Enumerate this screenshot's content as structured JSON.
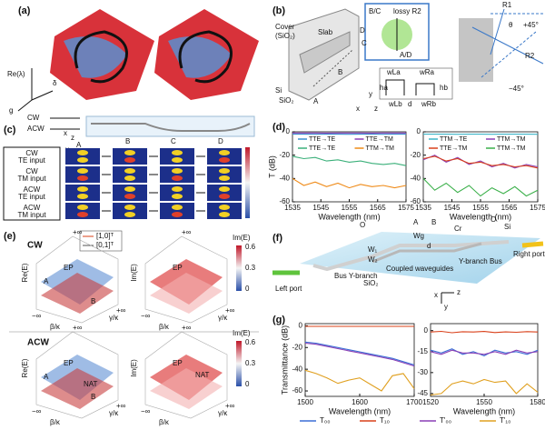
{
  "panels": [
    "(a)",
    "(b)",
    "(c)",
    "(d)",
    "(e)",
    "(f)",
    "(g)"
  ],
  "a": {
    "labels": [
      "Re(λ)",
      "δ",
      "g"
    ]
  },
  "b": {
    "labels": [
      "Cover",
      "(SiO₂)",
      "Slab",
      "Si",
      "SiO₂",
      "A",
      "B",
      "C",
      "D",
      "B/C",
      "lossy R2",
      "A/D",
      "R1",
      "R2",
      "θ",
      "+45°",
      "−45°",
      "wLa",
      "wRa",
      "ha",
      "hb",
      "wLb",
      "d",
      "wRb",
      "x",
      "y",
      "z"
    ]
  },
  "c": {
    "labels": [
      "CW",
      "ACW",
      "z",
      "x",
      "A",
      "B",
      "C",
      "D",
      "y"
    ],
    "rows": [
      [
        "CW",
        "TE input"
      ],
      [
        "CW",
        "TM input"
      ],
      [
        "ACW",
        "TE input"
      ],
      [
        "ACW",
        "TM input"
      ]
    ]
  },
  "e": {
    "labels": [
      "CW",
      "ACW",
      "[1,0]ᵀ",
      "[0,1]ᵀ",
      "Re(E)",
      "Im(E)",
      "β/κ",
      "γ/κ",
      "+∞",
      "−∞",
      "EP",
      "NAT",
      "A",
      "B",
      "0.6",
      "0.3",
      "0"
    ]
  },
  "f": {
    "labels": [
      "Left port",
      "Right port",
      "Bus Y-branch",
      "Coupled waveguides",
      "Y-branch Bus",
      "SiO₂",
      "Si",
      "Cr",
      "O",
      "A",
      "B",
      "W₁",
      "W₂",
      "Wg",
      "d",
      "x",
      "y",
      "z"
    ]
  },
  "chart_data": [
    {
      "type": "line",
      "xlabel": "Wavelength (nm)",
      "ylabel": "T (dB)",
      "legend": "top",
      "x": [
        1535,
        1539,
        1543,
        1547,
        1551,
        1555,
        1559,
        1563,
        1567,
        1571,
        1575
      ],
      "xlim": [
        1535,
        1575
      ],
      "xticks": [
        1535,
        1545,
        1555,
        1565,
        1575
      ],
      "ylim": [
        -60,
        0
      ],
      "yticks": [
        0,
        -20,
        -40,
        -60
      ],
      "series": [
        {
          "name": "TTE→TE",
          "color": "#3a8fd0",
          "values": [
            -2,
            -2,
            -2.1,
            -2,
            -2,
            -2.1,
            -2,
            -2,
            -2.1,
            -2,
            -2
          ]
        },
        {
          "name": "TTE→TM",
          "color": "#8a3fb5",
          "values": [
            -1,
            -1,
            -1,
            -1.1,
            -1,
            -1,
            -1,
            -1.1,
            -1,
            -1,
            -1
          ]
        },
        {
          "name": "TTE→TE",
          "color": "#3bb07a",
          "values": [
            -21,
            -23,
            -22,
            -25,
            -24,
            -26,
            -25,
            -27,
            -28,
            -27,
            -29
          ]
        },
        {
          "name": "TTM→TM",
          "color": "#ef8a17",
          "values": [
            -40,
            -46,
            -43,
            -47,
            -44,
            -48,
            -45,
            -47,
            -46,
            -48,
            -46
          ]
        }
      ]
    },
    {
      "type": "line",
      "xlabel": "Wavelength (nm)",
      "legend": "top",
      "x": [
        1535,
        1539,
        1543,
        1547,
        1551,
        1555,
        1559,
        1563,
        1567,
        1571,
        1575
      ],
      "xlim": [
        1535,
        1575
      ],
      "xticks": [
        1535,
        1545,
        1555,
        1565,
        1575
      ],
      "ylim": [
        -60,
        0
      ],
      "yticks": [
        0,
        -20,
        -40,
        -60
      ],
      "series": [
        {
          "name": "TTM→TE",
          "color": "#3fb6c9",
          "values": [
            -2,
            -2,
            -2,
            -2.1,
            -2,
            -2,
            -2.1,
            -2,
            -2,
            -2,
            -2.1
          ]
        },
        {
          "name": "TTM→TM",
          "color": "#8a3fb5",
          "values": [
            -24,
            -20,
            -26,
            -22,
            -28,
            -25,
            -30,
            -27,
            -31,
            -28,
            -30
          ]
        },
        {
          "name": "TTE→TM",
          "color": "#d9401a",
          "values": [
            -23,
            -21,
            -25,
            -23,
            -27,
            -26,
            -29,
            -28,
            -30,
            -29,
            -31
          ]
        },
        {
          "name": "TTM→TM",
          "color": "#3bb04a",
          "values": [
            -40,
            -50,
            -44,
            -52,
            -46,
            -55,
            -48,
            -53,
            -47,
            -55,
            -50
          ]
        }
      ]
    },
    {
      "type": "line",
      "xlabel": "Wavelength (nm)",
      "ylabel": "Transmittance (dB)",
      "legend": "bottom",
      "x": [
        1500,
        1520,
        1540,
        1560,
        1580,
        1600,
        1620,
        1640,
        1660,
        1680,
        1700
      ],
      "xlim": [
        1500,
        1700
      ],
      "xticks": [
        1500,
        1600,
        1700
      ],
      "ylim": [
        -65,
        2
      ],
      "yticks": [
        0,
        -20,
        -40,
        -60
      ],
      "series": [
        {
          "name": "T₀₀",
          "color": "#3b6fd6",
          "values": [
            -15,
            -16,
            -18,
            -20,
            -22,
            -24,
            -26,
            -28,
            -30,
            -33,
            -36
          ]
        },
        {
          "name": "T₁₀",
          "color": "#d9401a",
          "values": [
            -0.5,
            -0.5,
            -0.5,
            -0.5,
            -0.5,
            -0.5,
            -0.5,
            -0.5,
            -0.5,
            -0.5,
            -0.5
          ]
        },
        {
          "name": "T'₀₀",
          "color": "#8a3fb5",
          "values": [
            -16,
            -17,
            -19,
            -21,
            -23,
            -25,
            -27,
            -29,
            -31,
            -34,
            -37
          ]
        },
        {
          "name": "T'₁₀",
          "color": "#e0a020",
          "values": [
            -41,
            -44,
            -48,
            -53,
            -50,
            -48,
            -54,
            -60,
            -46,
            -44,
            -58
          ]
        }
      ]
    },
    {
      "type": "line",
      "xlabel": "Wavelength (nm)",
      "x": [
        1520,
        1526,
        1532,
        1538,
        1544,
        1550,
        1556,
        1562,
        1568,
        1574,
        1580
      ],
      "xlim": [
        1520,
        1580
      ],
      "xticks": [
        1520,
        1550,
        1580
      ],
      "ylim": [
        -47,
        5
      ],
      "yticks": [
        0,
        -15,
        -30,
        -45
      ],
      "series": [
        {
          "color": "#d9401a",
          "values": [
            -1,
            -0.5,
            -1.5,
            -0.8,
            -1,
            -0.6,
            -1.4,
            -0.9,
            -1.2,
            -0.7,
            -1
          ]
        },
        {
          "color": "#3b6fd6",
          "values": [
            -14,
            -16,
            -13,
            -17,
            -15,
            -18,
            -14,
            -16,
            -15,
            -17,
            -14
          ]
        },
        {
          "color": "#8a3fb5",
          "values": [
            -15,
            -17,
            -14,
            -16,
            -16,
            -17,
            -15,
            -17,
            -14,
            -16,
            -15
          ]
        },
        {
          "color": "#e0a020",
          "values": [
            -46,
            -45,
            -38,
            -36,
            -38,
            -35,
            -37,
            -36,
            -45,
            -38,
            -44
          ]
        }
      ]
    }
  ]
}
